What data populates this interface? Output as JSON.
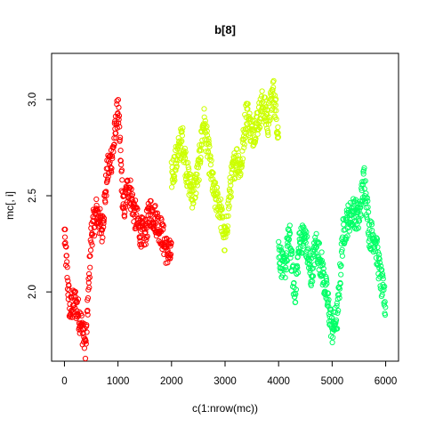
{
  "chart_data": {
    "type": "scatter",
    "title": "b[8]",
    "xlabel": "c(1:nrow(mc))",
    "ylabel": "mc[, i]",
    "xlim": [
      -240,
      6240
    ],
    "ylim": [
      1.64,
      3.24
    ],
    "xticks": [
      "0",
      "1000",
      "2000",
      "3000",
      "4000",
      "5000",
      "6000"
    ],
    "yticks": [
      "2.0",
      "2.5",
      "3.0"
    ],
    "marker": "open-circle",
    "grid": false,
    "legend": "none",
    "series": [
      {
        "color": "#FF0000",
        "x": [
          0,
          100,
          200,
          300,
          400,
          500,
          600,
          700,
          800,
          900,
          1000,
          1100,
          1200,
          1300,
          1400,
          1500,
          1600,
          1700,
          1800,
          1900,
          2000
        ],
        "y": [
          2.3,
          1.9,
          1.95,
          1.85,
          1.72,
          2.3,
          2.42,
          2.32,
          2.62,
          2.72,
          2.96,
          2.42,
          2.56,
          2.42,
          2.32,
          2.3,
          2.42,
          2.38,
          2.32,
          2.22,
          2.18
        ]
      },
      {
        "color": "#CCFF00",
        "x": [
          2000,
          2100,
          2200,
          2300,
          2400,
          2500,
          2600,
          2700,
          2800,
          2900,
          3000,
          3100,
          3200,
          3300,
          3400,
          3500,
          3600,
          3700,
          3800,
          3900,
          4000
        ],
        "y": [
          2.6,
          2.7,
          2.8,
          2.6,
          2.5,
          2.62,
          2.9,
          2.7,
          2.5,
          2.45,
          2.25,
          2.55,
          2.7,
          2.65,
          2.95,
          2.82,
          2.88,
          2.98,
          2.88,
          3.05,
          2.82
        ]
      },
      {
        "color": "#00FF66",
        "x": [
          4000,
          4100,
          4200,
          4300,
          4400,
          4500,
          4600,
          4700,
          4800,
          4900,
          5000,
          5100,
          5200,
          5300,
          5400,
          5500,
          5600,
          5700,
          5800,
          5900,
          6000
        ],
        "y": [
          2.22,
          2.1,
          2.3,
          1.98,
          2.28,
          2.28,
          2.08,
          2.25,
          2.14,
          1.98,
          1.8,
          1.88,
          2.3,
          2.38,
          2.42,
          2.38,
          2.6,
          2.3,
          2.28,
          2.08,
          1.92
        ]
      }
    ]
  }
}
